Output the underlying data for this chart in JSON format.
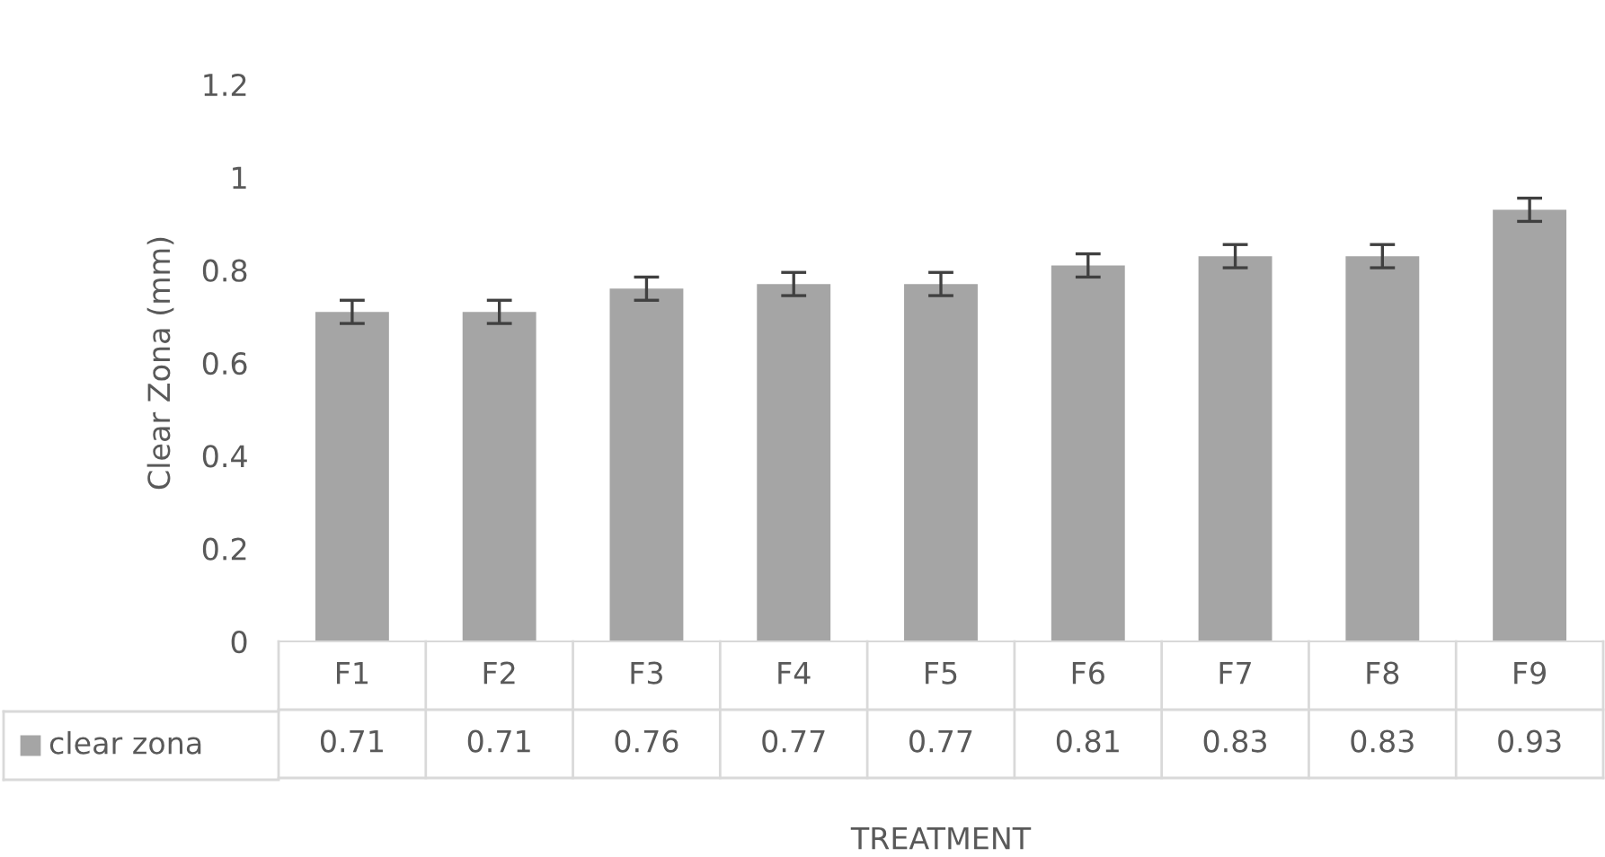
{
  "chart_data": {
    "type": "bar",
    "xlabel": "TREATMENT",
    "ylabel": "Clear Zona (mm)",
    "categories": [
      "F1",
      "F2",
      "F3",
      "F4",
      "F5",
      "F6",
      "F7",
      "F8",
      "F9"
    ],
    "series": [
      {
        "name": "clear zona",
        "color": "#a5a5a5",
        "values": [
          0.71,
          0.71,
          0.76,
          0.77,
          0.77,
          0.81,
          0.83,
          0.83,
          0.93
        ],
        "errors": [
          0.025,
          0.025,
          0.025,
          0.025,
          0.025,
          0.025,
          0.025,
          0.025,
          0.025
        ]
      }
    ],
    "ylim": [
      0,
      1.2
    ],
    "yticks": [
      0,
      0.2,
      0.4,
      0.6,
      0.8,
      1,
      1.2
    ],
    "data_labels": true,
    "grid": false,
    "legend": "bottom left"
  }
}
